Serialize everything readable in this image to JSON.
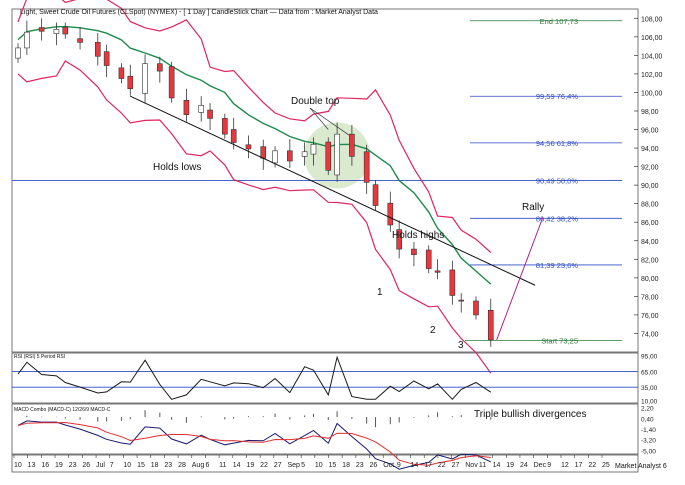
{
  "chart_data": {
    "type": "candlestick",
    "title": "Light, Sweet Crude Oil Futures (CLSpot) (NYMEX) -  [ 1 Day ] CandleStick Chart — Data from : Market Analyst Data",
    "colors": {
      "up": "#ffffff",
      "down": "#e8383d",
      "wick": "#333333",
      "bollinger": "#e0245e",
      "ma": "#1f8a4c",
      "fib": "#2e4bc8",
      "fib_end": "#2a7a3a",
      "trend": "#111111",
      "rsi": "#1a1a1a",
      "macd": "#1a1a6e",
      "signal": "#e03030",
      "highlight": "#b9d9a8",
      "rally": "#b0208a"
    },
    "ylim": [
      72,
      109
    ],
    "y_ticks": [
      "108,00",
      "106,00",
      "104,00",
      "102,00",
      "100,00",
      "98,00",
      "96,00",
      "94,00",
      "92,00",
      "90,00",
      "88,00",
      "86,00",
      "84,00",
      "82,00",
      "80,00",
      "78,00",
      "76,00",
      "74,00"
    ],
    "x_dates": [
      "2014-06-10",
      "2014-06-13",
      "2014-06-18",
      "2014-06-23",
      "2014-06-26",
      "2014-07-01",
      "2014-07-07",
      "2014-07-10",
      "2014-07-15",
      "2014-07-18",
      "2014-07-23",
      "2014-07-28",
      "2014-08-01",
      "2014-08-06",
      "2014-08-11",
      "2014-08-14",
      "2014-08-19",
      "2014-08-22",
      "2014-08-27",
      "2014-09-01",
      "2014-09-05",
      "2014-09-10",
      "2014-09-15",
      "2014-09-18",
      "2014-09-23",
      "2014-09-26",
      "2014-10-01",
      "2014-10-06",
      "2014-10-09",
      "2014-10-14",
      "2014-10-17",
      "2014-10-22",
      "2014-10-27",
      "2014-10-30",
      "2014-11-04",
      "2014-11-07",
      "2014-11-12",
      "2014-11-17"
    ],
    "close": [
      104.8,
      106.5,
      106.6,
      106.8,
      106.3,
      105.4,
      103.9,
      102.9,
      101.5,
      100.4,
      103.1,
      102.3,
      99.4,
      97.6,
      98.6,
      97.2,
      95.5,
      94.6,
      93.9,
      92.9,
      93.7,
      92.6,
      93.6,
      94.4,
      91.6,
      95.5,
      93.1,
      90.3,
      87.8,
      85.7,
      83.1,
      82.5,
      81.0,
      80.6,
      78.1,
      77.5,
      76.0,
      73.3
    ],
    "fib_levels": [
      {
        "value": 107.73,
        "label": "End 107,73",
        "kind": "end"
      },
      {
        "value": 99.59,
        "label": "99,59 76,4%",
        "kind": "fib"
      },
      {
        "value": 94.56,
        "label": "94,56 61,8%",
        "kind": "fib"
      },
      {
        "value": 90.49,
        "label": "90,49 50,0%",
        "kind": "fib"
      },
      {
        "value": 86.42,
        "label": "86,42 38,2%",
        "kind": "fib"
      },
      {
        "value": 81.39,
        "label": "81,39 23,6%",
        "kind": "fib"
      },
      {
        "value": 73.25,
        "label": "Start 73,25",
        "kind": "start"
      }
    ],
    "annotations": {
      "double_top": "Double top",
      "holds_lows": "Holds lows",
      "holds_highs": "Holds highs",
      "rally": "Rally",
      "low1": "1",
      "low2": "2",
      "low3": "3",
      "divergences": "Triple bullish divergences"
    },
    "rsi": {
      "title": "RSI (RSI) 5 Period RSI",
      "ticks": [
        "95,00",
        "65,00",
        "35,00",
        "10,00"
      ],
      "ylim": [
        5,
        100
      ],
      "levels": [
        65,
        35
      ]
    },
    "macd": {
      "title": "MACD Combo (MACD-C) 12/26/9 MACD-C",
      "ticks": [
        "2,20",
        "0,40",
        "-1,40",
        "-3,20",
        "-5,00"
      ],
      "ylim": [
        -5.6,
        2.8
      ]
    },
    "x_axis": {
      "labels": [
        "10",
        "13",
        "16",
        "19",
        "23",
        "26",
        "Jul",
        "7",
        "10",
        "15",
        "18",
        "23",
        "28",
        "Aug",
        "6",
        "11",
        "14",
        "19",
        "22",
        "27",
        "Sep",
        "5",
        "10",
        "15",
        "18",
        "23",
        "26",
        "Oct",
        "9",
        "14",
        "17",
        "22",
        "27",
        "Nov",
        "11",
        "14",
        "19",
        "24",
        "Dec",
        "9",
        "12",
        "17",
        "22",
        "25"
      ],
      "watermark": "Market Analyst 6"
    }
  }
}
